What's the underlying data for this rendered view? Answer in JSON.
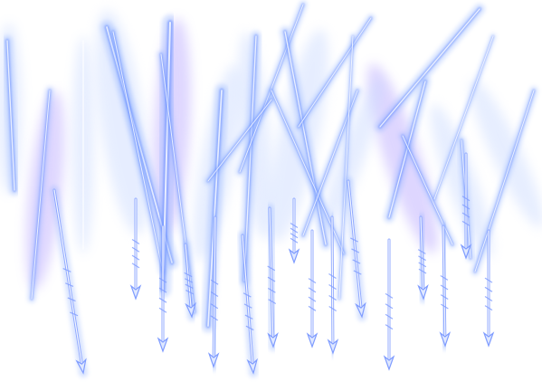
{
  "scene": {
    "subject": "arrow-rain-effect",
    "colors": {
      "background": "#ffffff",
      "glow_outer": "#c9d9ff",
      "glow_mid": "#8fb0ff",
      "streak_core": "#5f86ff",
      "violet_tint": "#b7a6ff",
      "arrow_head": "#dfe8ff",
      "arrow_outline": "#7f9cff"
    },
    "counts": {
      "arrows": 16,
      "light_streaks": 22
    }
  }
}
